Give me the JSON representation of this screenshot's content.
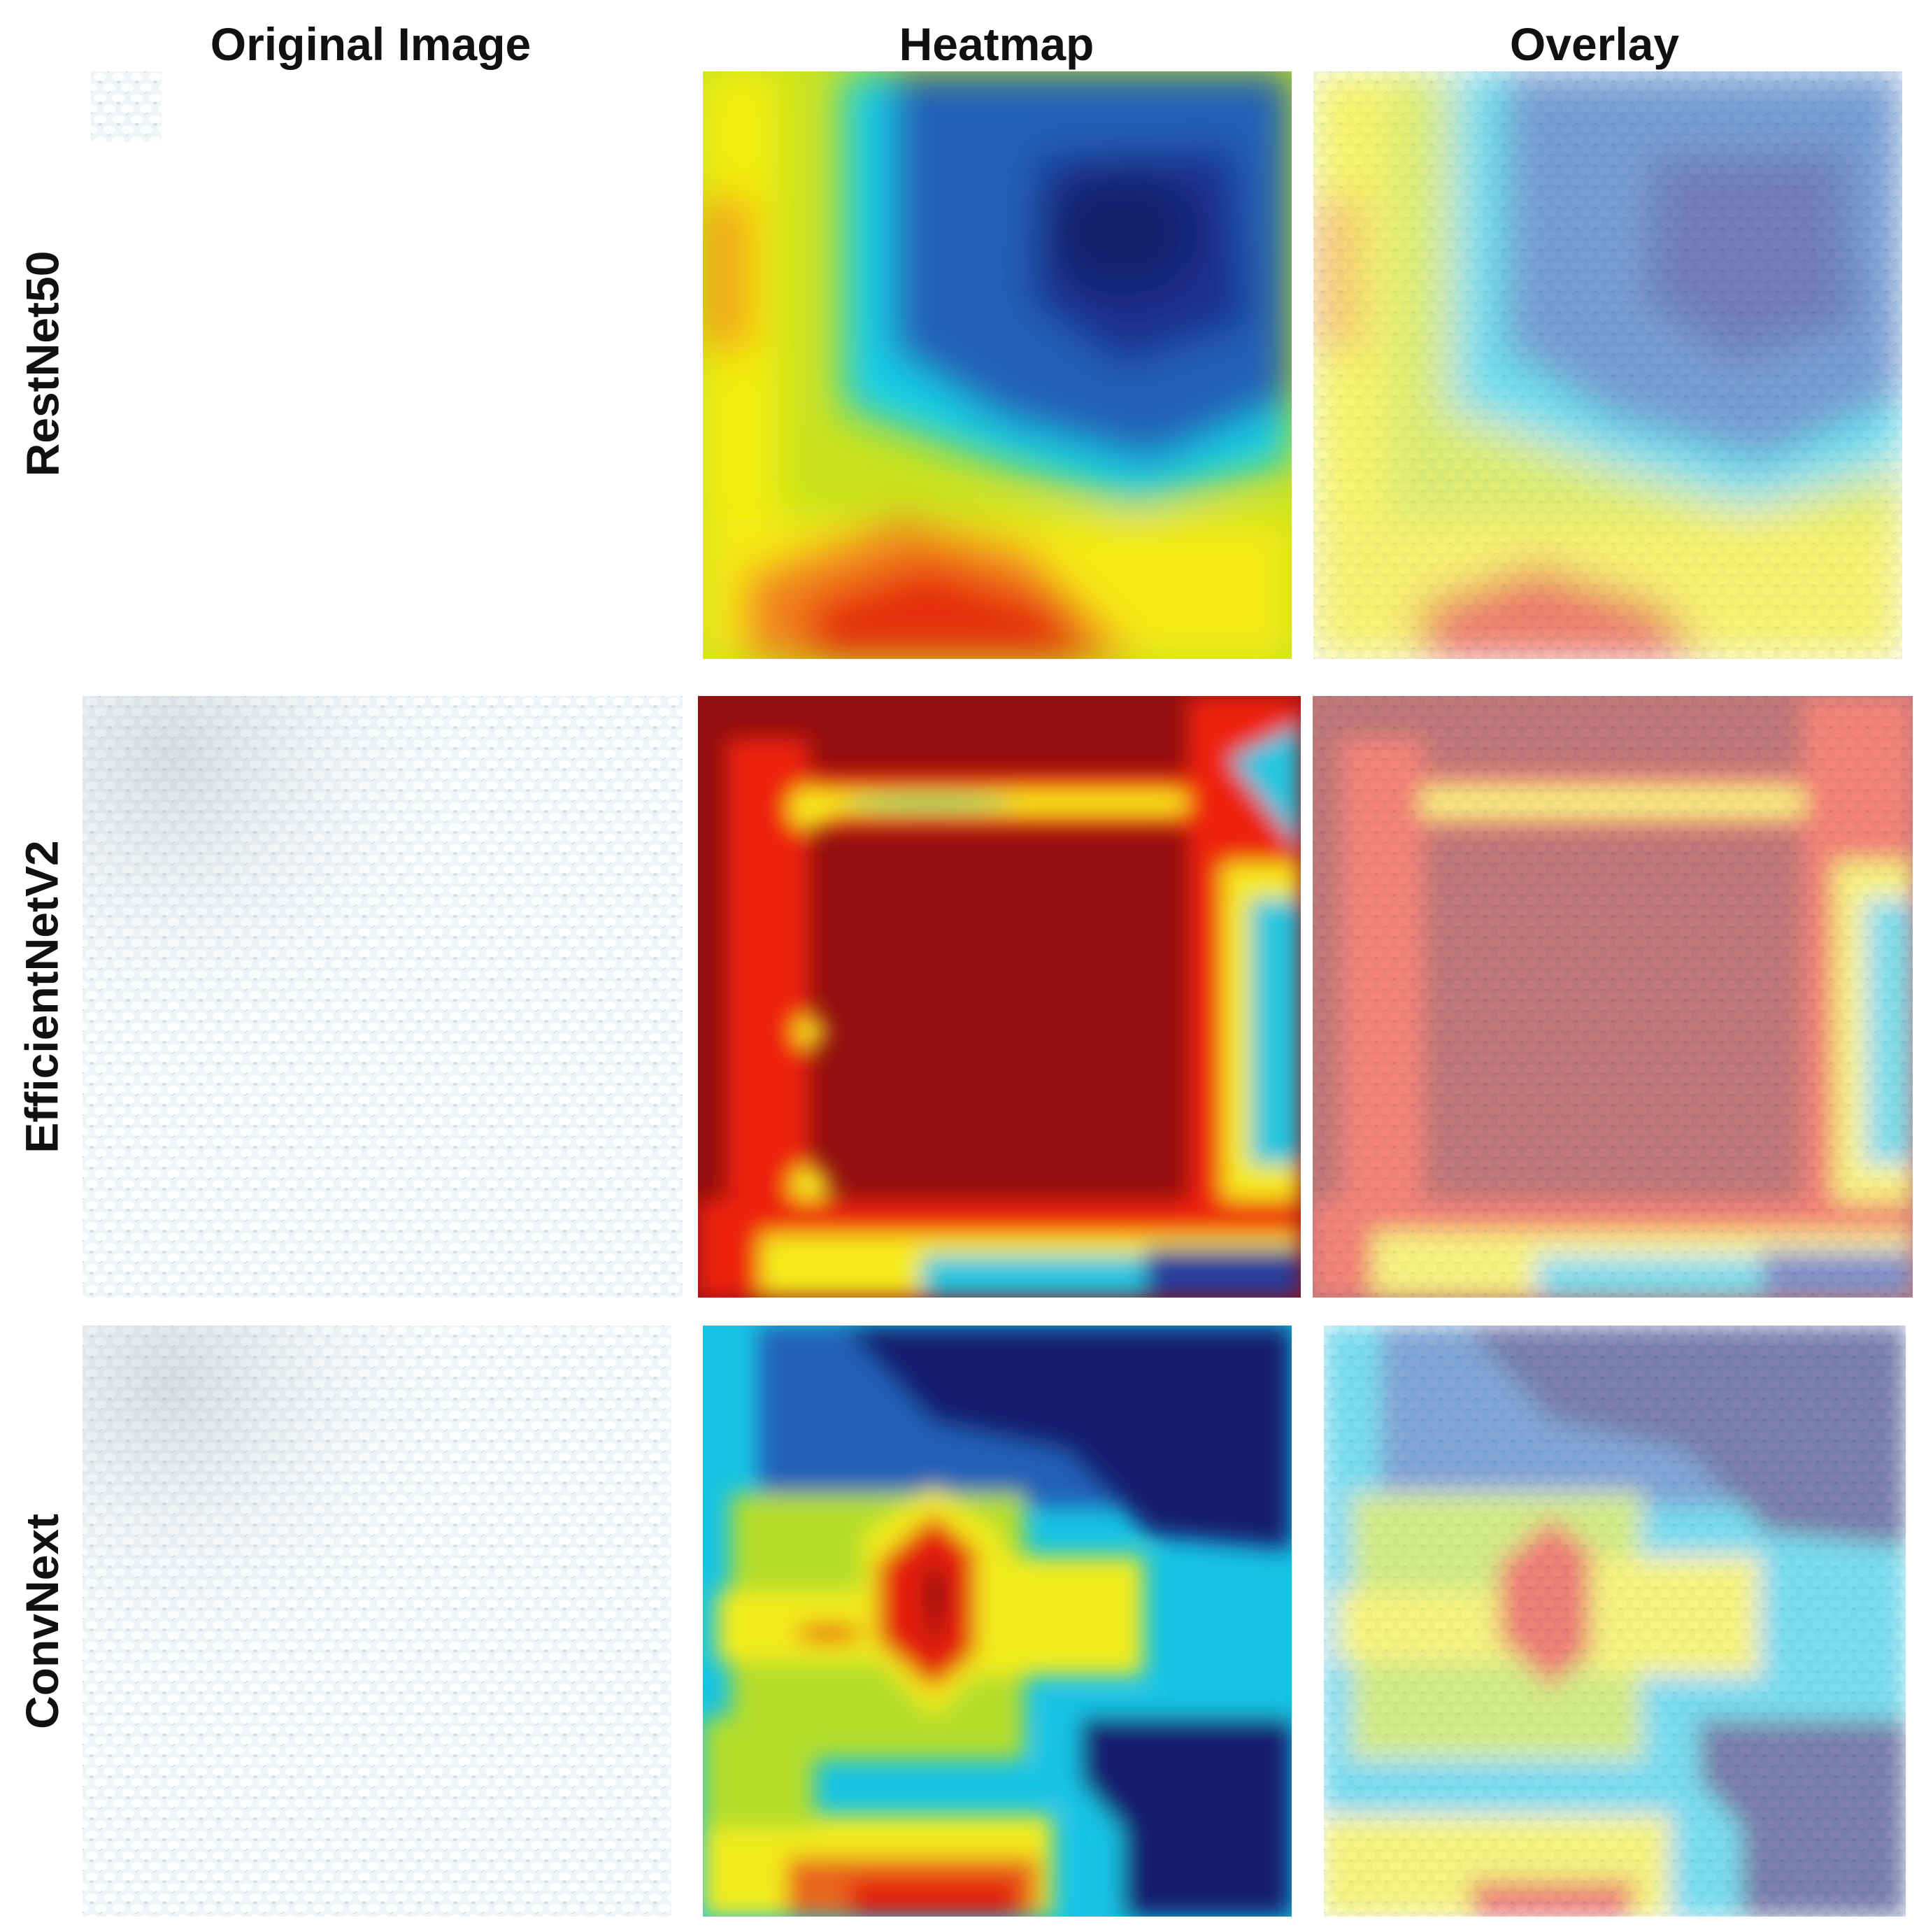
{
  "column_headers": [
    "Original Image",
    "Heatmap",
    "Overlay"
  ],
  "row_labels": [
    "RestNet50",
    "EfficientNetV2",
    "ConvNext"
  ],
  "rows": [
    {
      "model": "RestNet50",
      "heatmap_description": "cool blue/dark-blue activation at top-right, warm yellow-to-red activation along the bottom and left edge",
      "palette": {
        "hot": "#d42a12",
        "warm": "#f7ef14",
        "mid": "#19c8e6",
        "cool": "#1f3ea8",
        "deep": "#16237a"
      }
    },
    {
      "model": "EfficientNetV2",
      "heatmap_description": "dark red activation filling the interior, red/yellow rings, cyan and blue toward right and bottom edges",
      "palette": {
        "hot": "#ee1c10",
        "warm": "#f6ea1c",
        "mid": "#22c6e0",
        "cool": "#263c9e",
        "deep": "#920e10"
      }
    },
    {
      "model": "ConvNext",
      "heatmap_description": "central red/dark hotspot surrounded by yellow and cyan, dark blue at top-right and right-bottom, red/yellow at bottom",
      "palette": {
        "hot": "#e41e10",
        "warm": "#f3ec1a",
        "mid": "#17c3e4",
        "cool": "#20379c",
        "deep": "#141f70"
      }
    }
  ]
}
